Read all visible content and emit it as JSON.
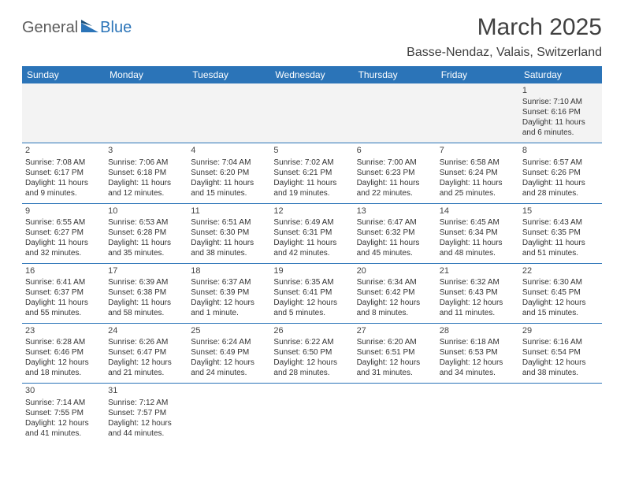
{
  "logo": {
    "text_general": "General",
    "text_blue": "Blue",
    "shape_color": "#2b74b8"
  },
  "title": "March 2025",
  "location": "Basse-Nendaz, Valais, Switzerland",
  "colors": {
    "header_bg": "#2b74b8",
    "header_fg": "#ffffff",
    "row_border": "#2b74b8",
    "empty_bg": "#f3f3f3",
    "text": "#333333"
  },
  "weekdays": [
    "Sunday",
    "Monday",
    "Tuesday",
    "Wednesday",
    "Thursday",
    "Friday",
    "Saturday"
  ],
  "weeks": [
    [
      null,
      null,
      null,
      null,
      null,
      null,
      {
        "d": "1",
        "sr": "Sunrise: 7:10 AM",
        "ss": "Sunset: 6:16 PM",
        "dl": "Daylight: 11 hours and 6 minutes."
      }
    ],
    [
      {
        "d": "2",
        "sr": "Sunrise: 7:08 AM",
        "ss": "Sunset: 6:17 PM",
        "dl": "Daylight: 11 hours and 9 minutes."
      },
      {
        "d": "3",
        "sr": "Sunrise: 7:06 AM",
        "ss": "Sunset: 6:18 PM",
        "dl": "Daylight: 11 hours and 12 minutes."
      },
      {
        "d": "4",
        "sr": "Sunrise: 7:04 AM",
        "ss": "Sunset: 6:20 PM",
        "dl": "Daylight: 11 hours and 15 minutes."
      },
      {
        "d": "5",
        "sr": "Sunrise: 7:02 AM",
        "ss": "Sunset: 6:21 PM",
        "dl": "Daylight: 11 hours and 19 minutes."
      },
      {
        "d": "6",
        "sr": "Sunrise: 7:00 AM",
        "ss": "Sunset: 6:23 PM",
        "dl": "Daylight: 11 hours and 22 minutes."
      },
      {
        "d": "7",
        "sr": "Sunrise: 6:58 AM",
        "ss": "Sunset: 6:24 PM",
        "dl": "Daylight: 11 hours and 25 minutes."
      },
      {
        "d": "8",
        "sr": "Sunrise: 6:57 AM",
        "ss": "Sunset: 6:26 PM",
        "dl": "Daylight: 11 hours and 28 minutes."
      }
    ],
    [
      {
        "d": "9",
        "sr": "Sunrise: 6:55 AM",
        "ss": "Sunset: 6:27 PM",
        "dl": "Daylight: 11 hours and 32 minutes."
      },
      {
        "d": "10",
        "sr": "Sunrise: 6:53 AM",
        "ss": "Sunset: 6:28 PM",
        "dl": "Daylight: 11 hours and 35 minutes."
      },
      {
        "d": "11",
        "sr": "Sunrise: 6:51 AM",
        "ss": "Sunset: 6:30 PM",
        "dl": "Daylight: 11 hours and 38 minutes."
      },
      {
        "d": "12",
        "sr": "Sunrise: 6:49 AM",
        "ss": "Sunset: 6:31 PM",
        "dl": "Daylight: 11 hours and 42 minutes."
      },
      {
        "d": "13",
        "sr": "Sunrise: 6:47 AM",
        "ss": "Sunset: 6:32 PM",
        "dl": "Daylight: 11 hours and 45 minutes."
      },
      {
        "d": "14",
        "sr": "Sunrise: 6:45 AM",
        "ss": "Sunset: 6:34 PM",
        "dl": "Daylight: 11 hours and 48 minutes."
      },
      {
        "d": "15",
        "sr": "Sunrise: 6:43 AM",
        "ss": "Sunset: 6:35 PM",
        "dl": "Daylight: 11 hours and 51 minutes."
      }
    ],
    [
      {
        "d": "16",
        "sr": "Sunrise: 6:41 AM",
        "ss": "Sunset: 6:37 PM",
        "dl": "Daylight: 11 hours and 55 minutes."
      },
      {
        "d": "17",
        "sr": "Sunrise: 6:39 AM",
        "ss": "Sunset: 6:38 PM",
        "dl": "Daylight: 11 hours and 58 minutes."
      },
      {
        "d": "18",
        "sr": "Sunrise: 6:37 AM",
        "ss": "Sunset: 6:39 PM",
        "dl": "Daylight: 12 hours and 1 minute."
      },
      {
        "d": "19",
        "sr": "Sunrise: 6:35 AM",
        "ss": "Sunset: 6:41 PM",
        "dl": "Daylight: 12 hours and 5 minutes."
      },
      {
        "d": "20",
        "sr": "Sunrise: 6:34 AM",
        "ss": "Sunset: 6:42 PM",
        "dl": "Daylight: 12 hours and 8 minutes."
      },
      {
        "d": "21",
        "sr": "Sunrise: 6:32 AM",
        "ss": "Sunset: 6:43 PM",
        "dl": "Daylight: 12 hours and 11 minutes."
      },
      {
        "d": "22",
        "sr": "Sunrise: 6:30 AM",
        "ss": "Sunset: 6:45 PM",
        "dl": "Daylight: 12 hours and 15 minutes."
      }
    ],
    [
      {
        "d": "23",
        "sr": "Sunrise: 6:28 AM",
        "ss": "Sunset: 6:46 PM",
        "dl": "Daylight: 12 hours and 18 minutes."
      },
      {
        "d": "24",
        "sr": "Sunrise: 6:26 AM",
        "ss": "Sunset: 6:47 PM",
        "dl": "Daylight: 12 hours and 21 minutes."
      },
      {
        "d": "25",
        "sr": "Sunrise: 6:24 AM",
        "ss": "Sunset: 6:49 PM",
        "dl": "Daylight: 12 hours and 24 minutes."
      },
      {
        "d": "26",
        "sr": "Sunrise: 6:22 AM",
        "ss": "Sunset: 6:50 PM",
        "dl": "Daylight: 12 hours and 28 minutes."
      },
      {
        "d": "27",
        "sr": "Sunrise: 6:20 AM",
        "ss": "Sunset: 6:51 PM",
        "dl": "Daylight: 12 hours and 31 minutes."
      },
      {
        "d": "28",
        "sr": "Sunrise: 6:18 AM",
        "ss": "Sunset: 6:53 PM",
        "dl": "Daylight: 12 hours and 34 minutes."
      },
      {
        "d": "29",
        "sr": "Sunrise: 6:16 AM",
        "ss": "Sunset: 6:54 PM",
        "dl": "Daylight: 12 hours and 38 minutes."
      }
    ],
    [
      {
        "d": "30",
        "sr": "Sunrise: 7:14 AM",
        "ss": "Sunset: 7:55 PM",
        "dl": "Daylight: 12 hours and 41 minutes."
      },
      {
        "d": "31",
        "sr": "Sunrise: 7:12 AM",
        "ss": "Sunset: 7:57 PM",
        "dl": "Daylight: 12 hours and 44 minutes."
      },
      null,
      null,
      null,
      null,
      null
    ]
  ]
}
